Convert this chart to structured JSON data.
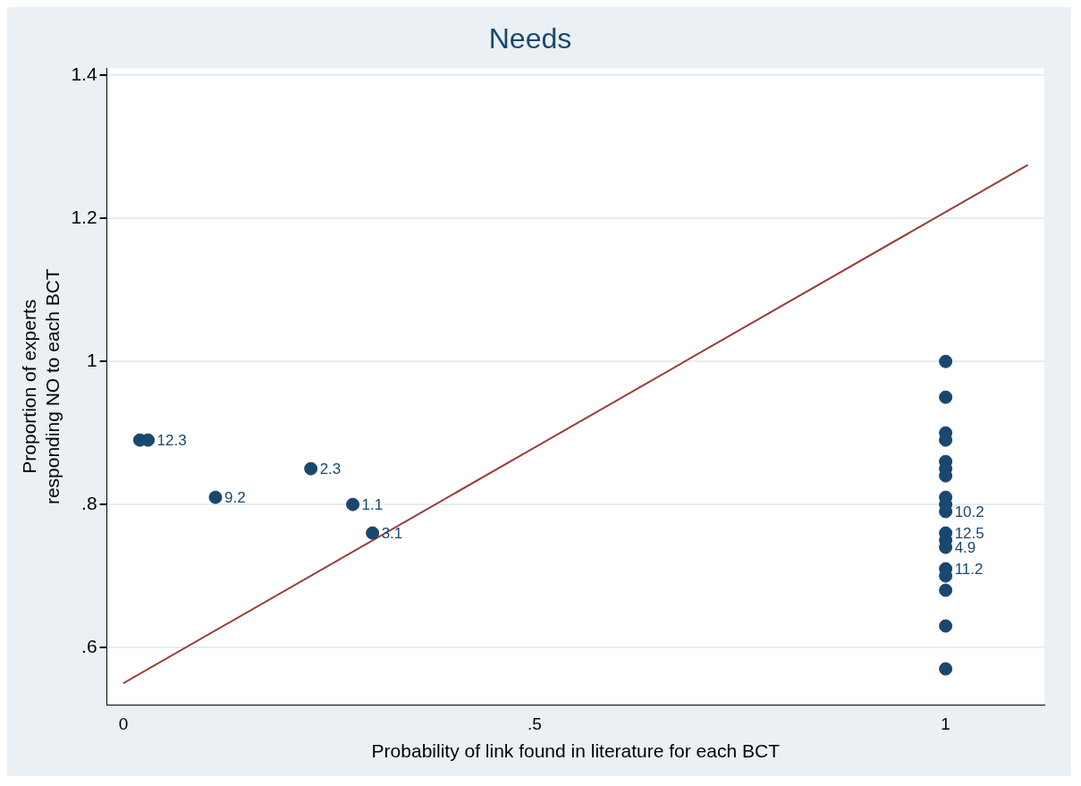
{
  "chart_data": {
    "type": "scatter",
    "title": "Needs",
    "xlabel": "Probability of link found in literature for each BCT",
    "ylabel": "Proportion of experts\nresponding NO to each BCT",
    "xlim": [
      -0.02,
      1.12
    ],
    "ylim": [
      0.52,
      1.41
    ],
    "xticks": [
      0,
      {
        "value": 0.5,
        "label": ".5"
      },
      1
    ],
    "yticks": [
      {
        "value": 0.6,
        "label": ".6"
      },
      {
        "value": 0.8,
        "label": ".8"
      },
      1,
      1.2,
      1.4
    ],
    "grid": "y",
    "legend": false,
    "marker": "circle",
    "annotations": [
      {
        "text": "12.3",
        "x": 0.03,
        "y": 0.89
      },
      {
        "text": "9.2",
        "x": 0.112,
        "y": 0.81
      },
      {
        "text": "2.3",
        "x": 0.228,
        "y": 0.85
      },
      {
        "text": "1.1",
        "x": 0.279,
        "y": 0.8
      },
      {
        "text": "3.1",
        "x": 0.303,
        "y": 0.76
      },
      {
        "text": "10.2",
        "x": 1,
        "y": 0.79
      },
      {
        "text": "12.5",
        "x": 1,
        "y": 0.76
      },
      {
        "text": "4.9",
        "x": 1,
        "y": 0.74
      },
      {
        "text": "11.2",
        "x": 1,
        "y": 0.71
      }
    ],
    "series": [
      {
        "color": "#1a476f",
        "x": [
          0.02,
          0.03,
          0.112,
          0.228,
          0.279,
          0.303,
          1,
          1,
          1,
          1,
          1,
          1,
          1,
          1,
          1,
          1,
          1,
          1,
          1,
          1,
          1,
          1,
          1,
          1
        ],
        "values": [
          0.89,
          0.89,
          0.81,
          0.85,
          0.8,
          0.76,
          1.0,
          0.95,
          0.9,
          0.89,
          0.86,
          0.85,
          0.84,
          0.81,
          0.8,
          0.79,
          0.76,
          0.75,
          0.74,
          0.71,
          0.7,
          0.68,
          0.63,
          0.57
        ]
      },
      {
        "type": "line",
        "color": "#9b3b3b",
        "line_style": "solid",
        "marker": "none",
        "x": [
          0,
          1.1
        ],
        "values": [
          0.55,
          1.275
        ]
      }
    ]
  }
}
